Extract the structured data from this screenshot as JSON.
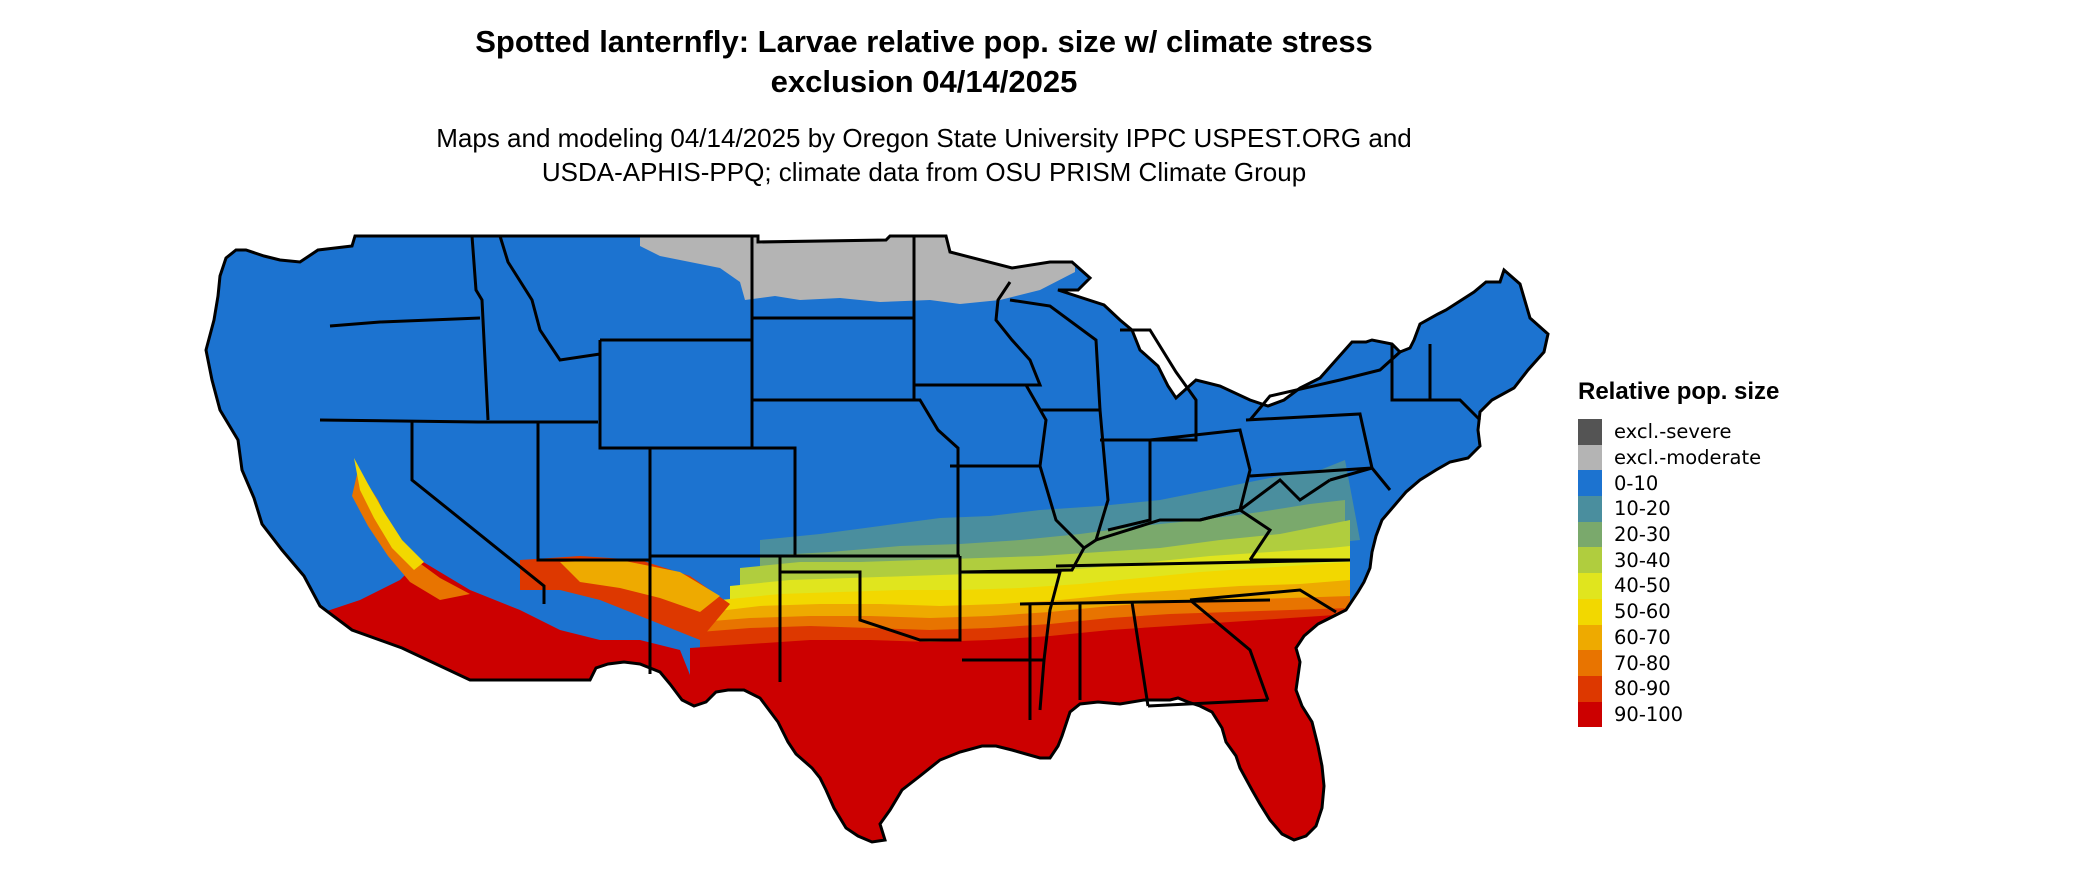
{
  "map": {
    "title_line1": "Spotted lanternfly: Larvae relative pop. size w/ climate stress",
    "title_line2": "exclusion 04/14/2025",
    "subtitle_line1": "Maps and modeling 04/14/2025 by Oregon State University IPPC USPEST.ORG and",
    "subtitle_line2": "USDA-APHIS-PPQ; climate data from OSU PRISM Climate Group",
    "region": "Contiguous United States",
    "state_border_color": "#000000",
    "state_fill_default": "#1c73d0"
  },
  "legend": {
    "title": "Relative pop. size",
    "items": [
      {
        "label": "excl.-severe",
        "color": "#545454"
      },
      {
        "label": "excl.-moderate",
        "color": "#b4b4b4"
      },
      {
        "label": "0-10",
        "color": "#1c73d0"
      },
      {
        "label": "10-20",
        "color": "#4a8e9e"
      },
      {
        "label": "20-30",
        "color": "#7aa96c"
      },
      {
        "label": "30-40",
        "color": "#b0cd3e"
      },
      {
        "label": "40-50",
        "color": "#e0e51e"
      },
      {
        "label": "50-60",
        "color": "#f2d800"
      },
      {
        "label": "60-70",
        "color": "#eeaa00"
      },
      {
        "label": "70-80",
        "color": "#e87400"
      },
      {
        "label": "80-90",
        "color": "#dd3800"
      },
      {
        "label": "90-100",
        "color": "#cc0000"
      }
    ]
  }
}
